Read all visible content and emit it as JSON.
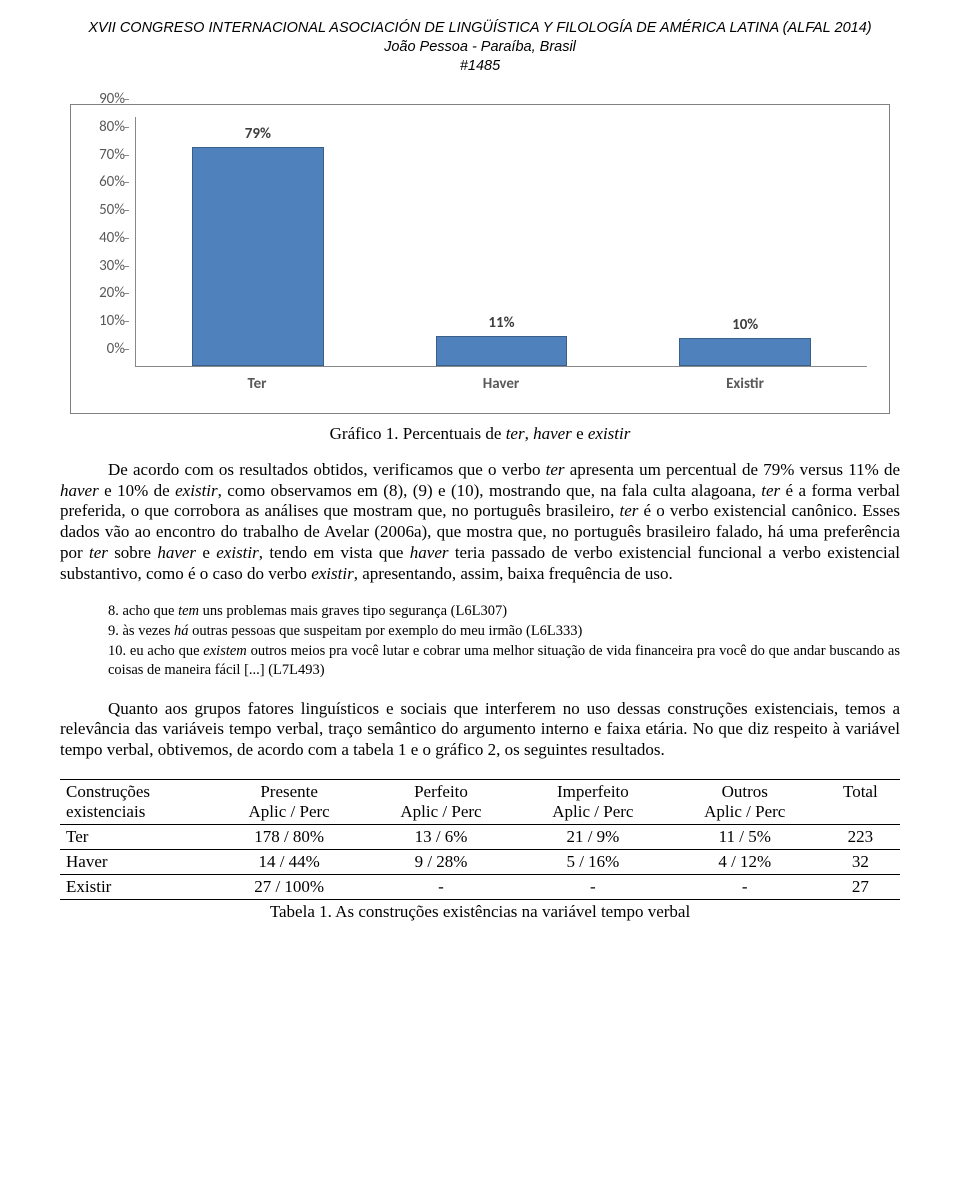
{
  "header": {
    "title": "XVII CONGRESO INTERNACIONAL ASOCIACIÓN DE LINGÜÍSTICA Y FILOLOGÍA DE AMÉRICA LATINA (ALFAL 2014)",
    "location": "João Pessoa - Paraíba, Brasil",
    "number": "#1485"
  },
  "chart": {
    "type": "bar",
    "categories": [
      "Ter",
      "Haver",
      "Existir"
    ],
    "values": [
      79,
      11,
      10
    ],
    "value_labels": [
      "79%",
      "11%",
      "10%"
    ],
    "bar_color": "#4f81bd",
    "bar_border": "#3a5f8a",
    "bar_width_pct": 18,
    "y_ticks": [
      "0%",
      "10%",
      "20%",
      "30%",
      "40%",
      "50%",
      "60%",
      "70%",
      "80%",
      "90%"
    ],
    "ylim": [
      0,
      90
    ],
    "label_fontsize": 15,
    "axis_color": "#888888",
    "tick_text_color": "#595959",
    "background_color": "#ffffff"
  },
  "chart_caption_prefix": "Gráfico 1. Percentuais de ",
  "chart_caption_ital1": "ter",
  "chart_caption_sep1": ", ",
  "chart_caption_ital2": "haver",
  "chart_caption_sep2": " e ",
  "chart_caption_ital3": "existir",
  "para1_a": "De acordo com os resultados obtidos, verificamos que o verbo ",
  "para1_ter": "ter",
  "para1_b": " apresenta um percentual de 79% versus 11% de ",
  "para1_haver": "haver",
  "para1_c": " e 10% de ",
  "para1_existir": "existir",
  "para1_d": ", como observamos em (8), (9) e (10), mostrando que, na fala culta alagoana, ",
  "para1_ter2": "ter",
  "para1_e": " é a forma verbal preferida, o que corrobora as análises que mostram que, no português brasileiro, ",
  "para1_ter3": "ter",
  "para1_f": " é o verbo existencial canônico. Esses dados vão ao encontro do trabalho de Avelar (2006a), que mostra que, no português brasileiro falado, há uma preferência por ",
  "para1_ter4": "ter",
  "para1_g": " sobre ",
  "para1_haver2": "haver",
  "para1_h": " e ",
  "para1_existir2": "existir",
  "para1_i": ", tendo em vista que ",
  "para1_haver3": "haver",
  "para1_j": " teria passado de verbo existencial funcional a verbo existencial substantivo, como é o caso do verbo ",
  "para1_existir3": "existir",
  "para1_k": ", apresentando, assim, baixa frequência de uso.",
  "ex8_a": "8. acho que ",
  "ex8_it": "tem",
  "ex8_b": " uns problemas mais graves tipo segurança (L6L307)",
  "ex9_a": "9. às vezes ",
  "ex9_it": "há",
  "ex9_b": " outras pessoas que suspeitam por exemplo do meu irmão (L6L333)",
  "ex10_a": "10. eu acho que ",
  "ex10_it": "existem",
  "ex10_b": " outros meios pra você lutar e cobrar uma melhor situação de vida financeira pra você do que andar buscando as coisas de maneira fácil [...] (L7L493)",
  "para2": "Quanto aos grupos fatores linguísticos e sociais que interferem no uso dessas construções existenciais, temos a relevância das variáveis tempo verbal, traço semântico do argumento interno e faixa etária.  No que diz respeito à variável tempo verbal, obtivemos, de acordo com a tabela 1 e o gráfico 2, os seguintes resultados.",
  "table": {
    "col1_l1": "Construções",
    "col1_l2": "existenciais",
    "col2_l1": "Presente",
    "col3_l1": "Perfeito",
    "col4_l1": "Imperfeito",
    "col5_l1": "Outros",
    "col6_l1": "Total",
    "sub_ap": "Aplic / Perc",
    "rows": [
      {
        "label": "Ter",
        "presente": "178 / 80%",
        "perfeito": "13 / 6%",
        "imperfeito": "21 / 9%",
        "outros": "11 / 5%",
        "total": "223"
      },
      {
        "label": "Haver",
        "presente": "14 / 44%",
        "perfeito": "9 / 28%",
        "imperfeito": "5 / 16%",
        "outros": "4 / 12%",
        "total": "32"
      },
      {
        "label": "Existir",
        "presente": "27 / 100%",
        "perfeito": "-",
        "imperfeito": "-",
        "outros": "-",
        "total": "27"
      }
    ]
  },
  "table_caption": "Tabela 1. As construções existências na variável tempo verbal"
}
